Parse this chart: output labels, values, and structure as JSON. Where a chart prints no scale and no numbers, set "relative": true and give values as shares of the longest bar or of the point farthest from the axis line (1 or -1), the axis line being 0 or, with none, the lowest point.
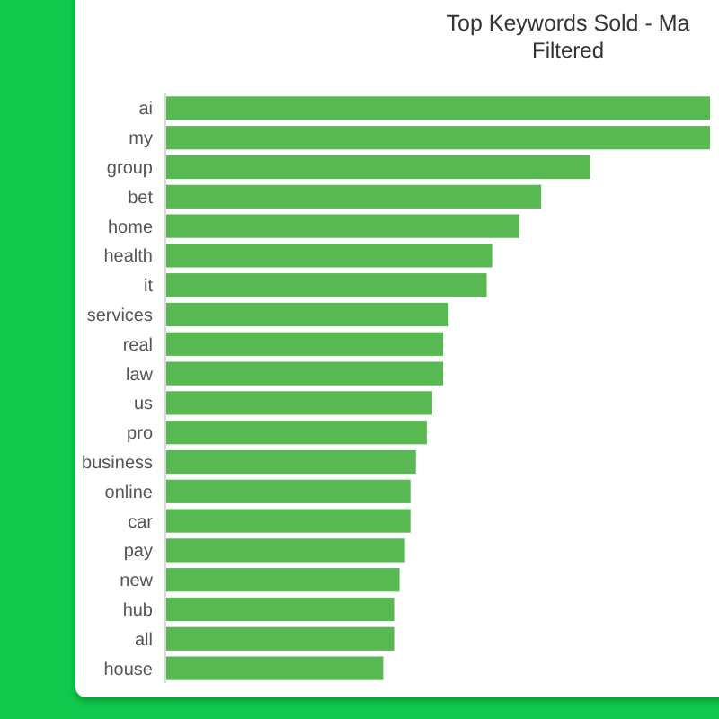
{
  "chart_data": {
    "type": "bar",
    "orientation": "horizontal",
    "relative": true,
    "title": "Top Keywords Sold - Ma",
    "subtitle": "Filtered",
    "categories": [
      "ai",
      "my",
      "group",
      "bet",
      "home",
      "health",
      "it",
      "services",
      "real",
      "law",
      "us",
      "pro",
      "business",
      "online",
      "car",
      "pay",
      "new",
      "hub",
      "all",
      "house"
    ],
    "values": [
      1,
      1,
      0.78,
      0.69,
      0.65,
      0.6,
      0.59,
      0.52,
      0.51,
      0.51,
      0.49,
      0.48,
      0.46,
      0.45,
      0.45,
      0.44,
      0.43,
      0.42,
      0.42,
      0.4
    ],
    "color": "#58b953"
  }
}
